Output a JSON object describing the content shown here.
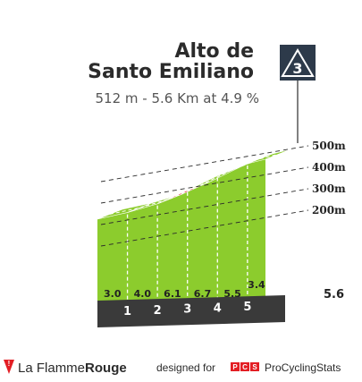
{
  "chart_data": {
    "type": "area",
    "title_line1": "Alto de",
    "title_line2": "Santo Emiliano",
    "subtitle": "512 m - 5.6 Km at 4.9 %",
    "category_badge": "3",
    "total_length_label": "5.6",
    "altitude_ticks": [
      {
        "value": 200,
        "label": "200m"
      },
      {
        "value": 300,
        "label": "300m"
      },
      {
        "value": 400,
        "label": "400m"
      },
      {
        "value": 500,
        "label": "500m"
      }
    ],
    "km_markers": [
      "1",
      "2",
      "3",
      "4",
      "5"
    ],
    "segments": [
      {
        "start_km": 0,
        "end_km": 1,
        "gradient": 3.0,
        "gradient_label": "3.0",
        "color": "#8ccc2d"
      },
      {
        "start_km": 1,
        "end_km": 2,
        "gradient": 4.0,
        "gradient_label": "4.0",
        "color": "#8ccc2d"
      },
      {
        "start_km": 2,
        "end_km": 3,
        "gradient": 6.1,
        "gradient_label": "6.1",
        "color": "#e8253a"
      },
      {
        "start_km": 3,
        "end_km": 4,
        "gradient": 6.7,
        "gradient_label": "6.7",
        "color": "#8ccc2d"
      },
      {
        "start_km": 4,
        "end_km": 5,
        "gradient": 5.5,
        "gradient_label": "5.5",
        "color": "#1d5b9c"
      },
      {
        "start_km": 5,
        "end_km": 5.6,
        "gradient": 3.4,
        "gradient_label": "3.4",
        "color": "#8ccc2d"
      }
    ]
  },
  "footer": {
    "brand_regular": "La Flamme",
    "brand_bold": "Rouge",
    "credit_prefix": "designed for",
    "pcs_letters": [
      "P",
      "C",
      "S"
    ],
    "credit_site": "ProCyclingStats"
  },
  "colors": {
    "side_wall": "#b5ab96",
    "base_band": "#3a3a3a",
    "accent_red": "#e31e24",
    "badge": "#2d3a4a"
  }
}
